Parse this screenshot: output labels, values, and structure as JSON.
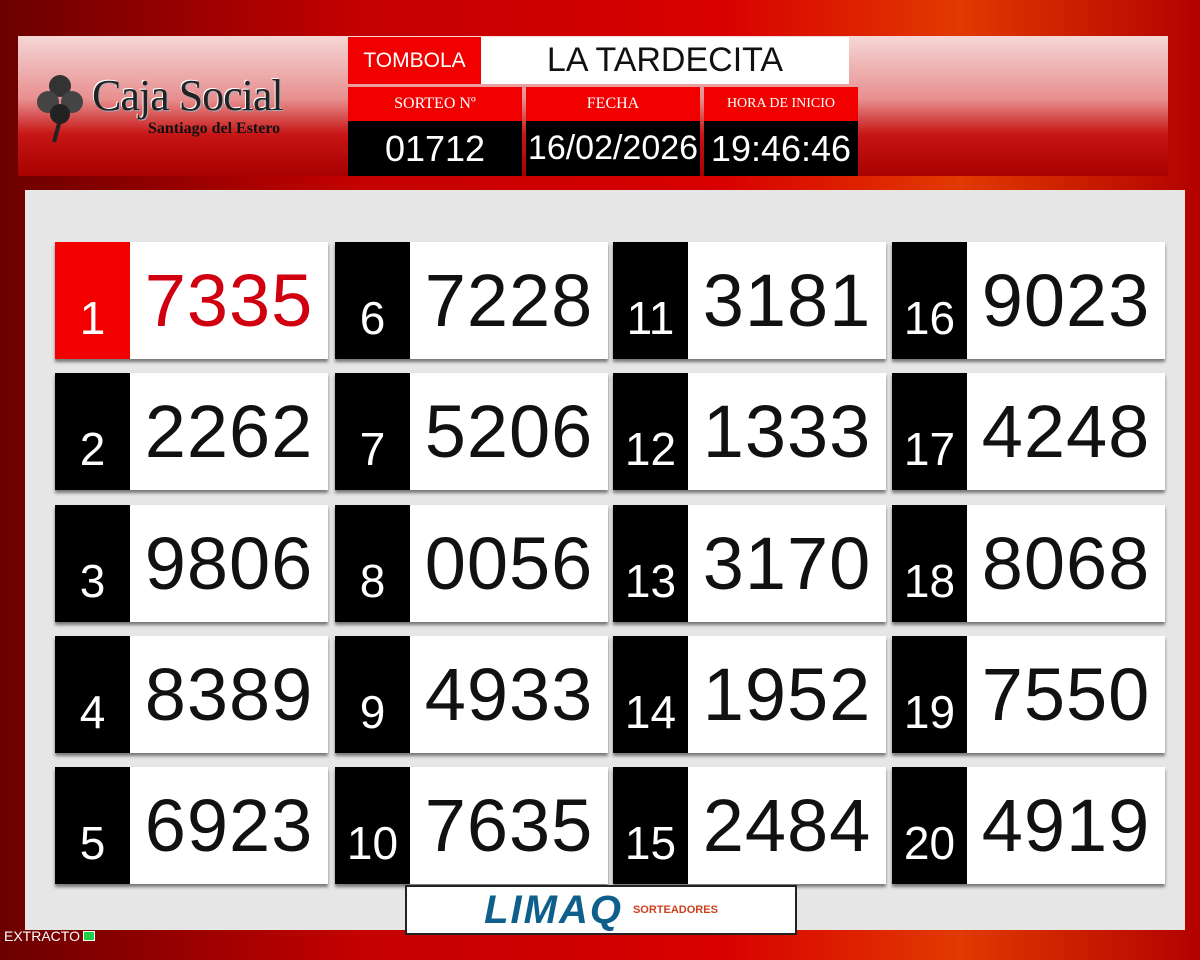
{
  "brand": {
    "name": "Caja Social",
    "subtitle": "Santiago del Estero"
  },
  "header": {
    "game_label": "TOMBOLA",
    "game_name": "LA TARDECITA",
    "draw_label": "SORTEO  Nº",
    "draw_number": "01712",
    "date_label": "FECHA",
    "date": "16/02/2026",
    "time_label": "HORA DE INICIO",
    "time": "19:46:46"
  },
  "results": [
    {
      "pos": "1",
      "num": "7335"
    },
    {
      "pos": "2",
      "num": "2262"
    },
    {
      "pos": "3",
      "num": "9806"
    },
    {
      "pos": "4",
      "num": "8389"
    },
    {
      "pos": "5",
      "num": "6923"
    },
    {
      "pos": "6",
      "num": "7228"
    },
    {
      "pos": "7",
      "num": "5206"
    },
    {
      "pos": "8",
      "num": "0056"
    },
    {
      "pos": "9",
      "num": "4933"
    },
    {
      "pos": "10",
      "num": "7635"
    },
    {
      "pos": "11",
      "num": "3181"
    },
    {
      "pos": "12",
      "num": "1333"
    },
    {
      "pos": "13",
      "num": "3170"
    },
    {
      "pos": "14",
      "num": "1952"
    },
    {
      "pos": "15",
      "num": "2484"
    },
    {
      "pos": "16",
      "num": "9023"
    },
    {
      "pos": "17",
      "num": "4248"
    },
    {
      "pos": "18",
      "num": "8068"
    },
    {
      "pos": "19",
      "num": "7550"
    },
    {
      "pos": "20",
      "num": "4919"
    }
  ],
  "sponsor": {
    "name": "LIMAQ",
    "tagline": "SORTEADORES"
  },
  "footer": {
    "label": "EXTRACTO"
  },
  "colors": {
    "accent": "#f20000",
    "highlight_number": "#d00010"
  }
}
